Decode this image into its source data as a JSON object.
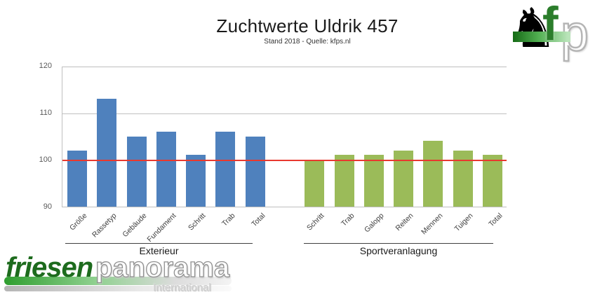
{
  "header": {
    "title": "Zuchtwerte Uldrik 457",
    "subtitle": "Stand 2018 - Quelle: kfps.nl"
  },
  "chart_data": {
    "type": "bar",
    "title": "Zuchtwerte Uldrik 457",
    "subtitle": "Stand 2018 - Quelle: kfps.nl",
    "ylim": [
      90,
      120
    ],
    "yticks": [
      90,
      100,
      110,
      120
    ],
    "grid": true,
    "legend": "none",
    "reference_line": 100,
    "reference_color": "#E8392F",
    "gridline_color": "#BFBFBF",
    "groups": [
      {
        "name": "Exterieur",
        "color": "#4F81BD",
        "categories": [
          "Größe",
          "Rassetyp",
          "Gebäude",
          "Fundament",
          "Schritt",
          "Trab",
          "Total"
        ],
        "values": [
          102,
          113,
          105,
          106,
          101,
          106,
          105
        ]
      },
      {
        "name": "Sportveranlagung",
        "color": "#9BBB59",
        "categories": [
          "Schritt",
          "Trab",
          "Galopp",
          "Reiten",
          "Mennen",
          "Tuigen",
          "Total"
        ],
        "values": [
          100,
          101,
          101,
          102,
          104,
          102,
          101
        ]
      }
    ]
  },
  "branding": {
    "footer_logo": {
      "part1": "friesen",
      "part2": "panorama",
      "part3": "International"
    },
    "corner_logo": {
      "horse_glyph": "♞",
      "letter_f": "f",
      "letter_p": "p"
    }
  }
}
